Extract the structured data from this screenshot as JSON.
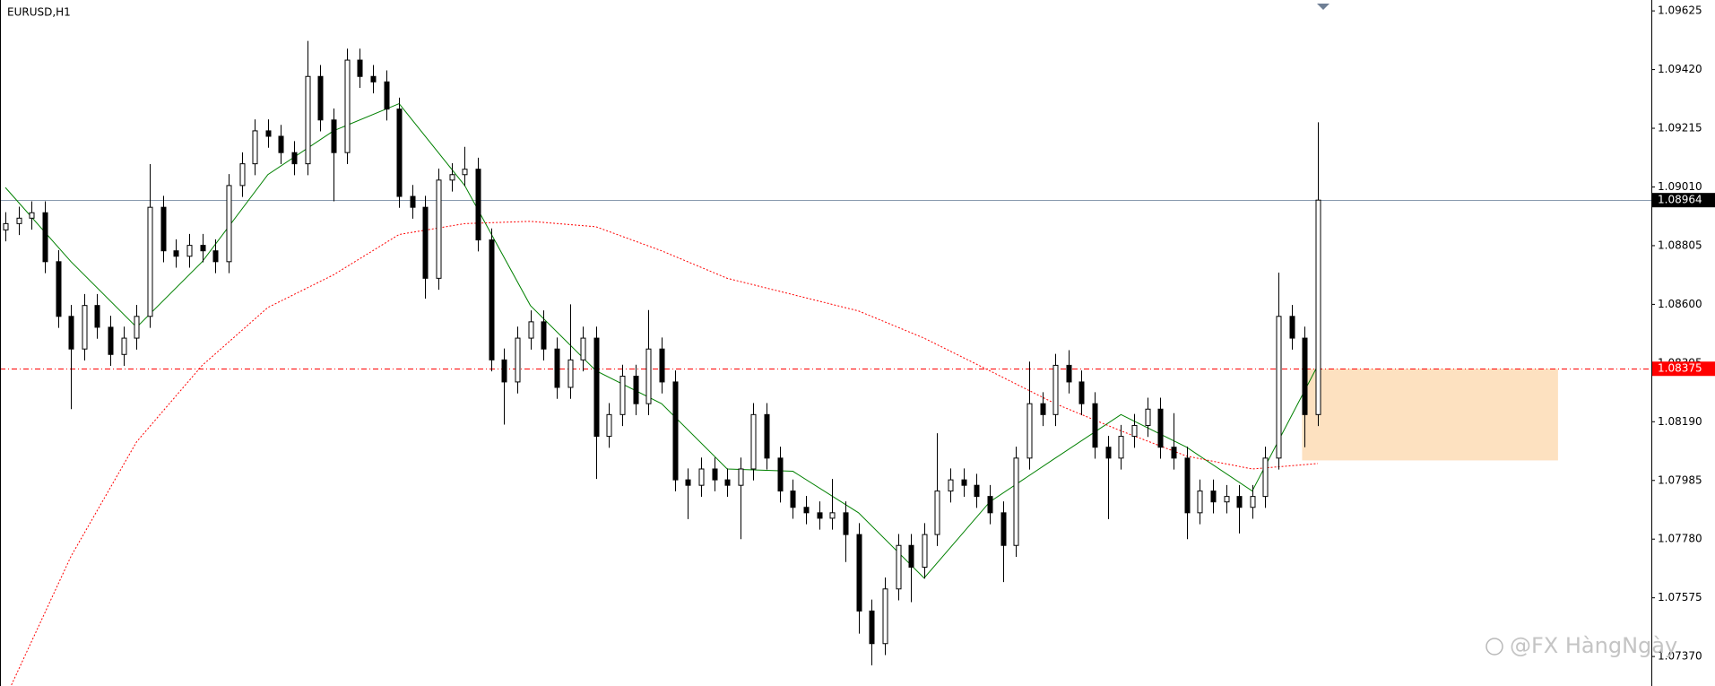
{
  "chart_data": {
    "type": "candlestick",
    "title": "EURUSD,H1",
    "watermark": "@FX HàngNgày",
    "up_color": "#ffffff",
    "down_color": "#000000",
    "ylim": [
      1.07267,
      1.09663
    ],
    "yticks": [
      1.09625,
      {
        "value": 1.0942,
        "label": "1.09420"
      },
      1.09215,
      {
        "value": 1.0901,
        "label": "1.09010"
      },
      1.08805,
      {
        "value": 1.086,
        "label": "1.08600"
      },
      1.08395,
      {
        "value": 1.0819,
        "label": "1.08190"
      },
      1.07985,
      {
        "value": 1.0778,
        "label": "1.07780"
      },
      1.07575,
      {
        "value": 1.0737,
        "label": "1.07370"
      }
    ],
    "grid": false,
    "open": [
      1.0886,
      1.08882,
      1.08901,
      1.0892,
      1.08749,
      1.08558,
      1.08444,
      1.08596,
      1.0852,
      1.08425,
      1.08482,
      1.08558,
      1.08939,
      1.08787,
      1.08768,
      1.08806,
      1.08787,
      1.08749,
      1.09015,
      1.09091,
      1.09206,
      1.09187,
      1.0913,
      1.09091,
      1.09396,
      1.09244,
      1.0913,
      1.09453,
      1.09396,
      1.09377,
      1.09282,
      1.08977,
      1.08939,
      1.08691,
      1.09034,
      1.09053,
      1.09072,
      1.08825,
      1.08406,
      1.08329,
      1.08482,
      1.08539,
      1.08444,
      1.0831,
      1.08406,
      1.08482,
      1.08139,
      1.08215,
      1.08349,
      1.08253,
      1.08444,
      1.08329,
      1.07987,
      1.07968,
      1.08025,
      1.07987,
      1.07968,
      1.08025,
      1.08215,
      1.08063,
      1.07948,
      1.07891,
      1.07872,
      1.07853,
      1.07872,
      1.07796,
      1.07529,
      1.07415,
      1.07606,
      1.07758,
      1.07682,
      1.07796,
      1.07948,
      1.07987,
      1.07968,
      1.07929,
      1.07872,
      1.07758,
      1.08063,
      1.08253,
      1.08215,
      1.08387,
      1.08329,
      1.08253,
      1.08101,
      1.08063,
      1.08139,
      1.08177,
      1.08234,
      1.08101,
      1.08063,
      1.07872,
      1.07948,
      1.0791,
      1.07929,
      1.07891,
      1.07929,
      1.08063,
      1.08558,
      1.08482,
      1.08215
    ],
    "high": [
      1.08922,
      1.08941,
      1.0896,
      1.0896,
      1.08789,
      1.08598,
      1.08636,
      1.08636,
      1.0856,
      1.08522,
      1.08598,
      1.0909,
      1.08979,
      1.08827,
      1.08846,
      1.08846,
      1.08827,
      1.09055,
      1.09131,
      1.09246,
      1.09246,
      1.09227,
      1.0917,
      1.0952,
      1.09436,
      1.09284,
      1.09493,
      1.09493,
      1.09436,
      1.09417,
      1.09322,
      1.09017,
      1.08979,
      1.09074,
      1.09093,
      1.0915,
      1.09112,
      1.08865,
      1.08446,
      1.08522,
      1.08579,
      1.08579,
      1.08484,
      1.086,
      1.08522,
      1.08522,
      1.08255,
      1.08389,
      1.08389,
      1.0858,
      1.08484,
      1.08369,
      1.08027,
      1.08065,
      1.08065,
      1.08027,
      1.08065,
      1.08255,
      1.08255,
      1.08103,
      1.07988,
      1.07931,
      1.07912,
      1.0799,
      1.07912,
      1.07836,
      1.07569,
      1.07646,
      1.07798,
      1.07798,
      1.07836,
      1.0815,
      1.08027,
      1.08027,
      1.08008,
      1.07969,
      1.07912,
      1.08103,
      1.084,
      1.08293,
      1.08427,
      1.0844,
      1.08369,
      1.08293,
      1.08141,
      1.08179,
      1.08217,
      1.08274,
      1.08274,
      1.0822,
      1.08103,
      1.07988,
      1.07988,
      1.07969,
      1.07969,
      1.07969,
      1.08103,
      1.08711,
      1.08598,
      1.08522,
      1.09236
    ],
    "low": [
      1.0882,
      1.08842,
      1.08861,
      1.08709,
      1.08518,
      1.08234,
      1.08404,
      1.0848,
      1.08385,
      1.08385,
      1.08442,
      1.08518,
      1.08747,
      1.08728,
      1.08728,
      1.08747,
      1.08709,
      1.08709,
      1.08975,
      1.09051,
      1.09147,
      1.0909,
      1.09051,
      1.09051,
      1.09204,
      1.0896,
      1.0909,
      1.09356,
      1.09337,
      1.09242,
      1.08937,
      1.08899,
      1.0862,
      1.08651,
      1.08994,
      1.09013,
      1.08785,
      1.08366,
      1.0818,
      1.08289,
      1.08442,
      1.08404,
      1.0827,
      1.0827,
      1.08366,
      1.0799,
      1.08099,
      1.08175,
      1.08213,
      1.08213,
      1.08289,
      1.07947,
      1.0785,
      1.07928,
      1.07947,
      1.07928,
      1.0778,
      1.07985,
      1.08023,
      1.07908,
      1.07851,
      1.07832,
      1.07813,
      1.07813,
      1.077,
      1.0745,
      1.07339,
      1.07375,
      1.07566,
      1.0756,
      1.07642,
      1.07756,
      1.07908,
      1.07928,
      1.07889,
      1.07832,
      1.0763,
      1.07718,
      1.08023,
      1.08175,
      1.08175,
      1.08289,
      1.08213,
      1.08061,
      1.0785,
      1.08023,
      1.08099,
      1.08137,
      1.08061,
      1.08023,
      1.0778,
      1.07832,
      1.0787,
      1.0787,
      1.078,
      1.07851,
      1.07889,
      1.08023,
      1.08442,
      1.08101,
      1.08175
    ],
    "close": [
      1.08882,
      1.08901,
      1.0892,
      1.08749,
      1.08558,
      1.08444,
      1.08596,
      1.0852,
      1.08425,
      1.08482,
      1.08558,
      1.08939,
      1.08787,
      1.08768,
      1.08806,
      1.08787,
      1.08749,
      1.09015,
      1.09091,
      1.09206,
      1.09187,
      1.0913,
      1.09091,
      1.09396,
      1.09244,
      1.0913,
      1.09453,
      1.09396,
      1.09377,
      1.09282,
      1.08977,
      1.08939,
      1.08691,
      1.09034,
      1.09053,
      1.09072,
      1.08825,
      1.08406,
      1.08329,
      1.08482,
      1.08539,
      1.08444,
      1.0831,
      1.08406,
      1.08482,
      1.08139,
      1.08215,
      1.08349,
      1.08253,
      1.08444,
      1.08329,
      1.07987,
      1.07968,
      1.08025,
      1.07987,
      1.07968,
      1.08025,
      1.08215,
      1.08063,
      1.07948,
      1.07891,
      1.07872,
      1.07853,
      1.07872,
      1.07796,
      1.07529,
      1.07415,
      1.07606,
      1.07758,
      1.07682,
      1.07796,
      1.07948,
      1.07987,
      1.07968,
      1.07929,
      1.07872,
      1.07758,
      1.08063,
      1.08253,
      1.08215,
      1.08387,
      1.08329,
      1.08253,
      1.08101,
      1.08063,
      1.08139,
      1.08177,
      1.08234,
      1.08101,
      1.08063,
      1.07872,
      1.07948,
      1.0791,
      1.07929,
      1.07891,
      1.07929,
      1.08063,
      1.08558,
      1.08482,
      1.08215,
      1.08964
    ],
    "indicators": {
      "x": [
        0,
        5,
        10,
        15,
        20,
        25,
        30,
        35,
        40,
        45,
        50,
        55,
        60,
        65,
        70,
        75,
        80,
        85,
        90,
        95,
        100
      ],
      "series": [
        {
          "color": "#008000",
          "style": "solid",
          "values": [
            1.09008,
            1.08749,
            1.0852,
            1.08749,
            1.09053,
            1.09206,
            1.09301,
            1.09015,
            1.08596,
            1.08368,
            1.08253,
            1.08025,
            1.08017,
            1.07872,
            1.07644,
            1.0791,
            1.08063,
            1.08215,
            1.08101,
            1.07948,
            1.08387
          ]
        },
        {
          "color": "#ff0000",
          "style": "dotted",
          "values": [
            1.07225,
            1.0772,
            1.0812,
            1.08387,
            1.08589,
            1.08703,
            1.08844,
            1.08882,
            1.0889,
            1.08871,
            1.08787,
            1.08691,
            1.08634,
            1.08577,
            1.08482,
            1.08368,
            1.08253,
            1.08158,
            1.0807,
            1.08025,
            1.08044
          ]
        }
      ]
    },
    "zone": {
      "x_start": 98.8,
      "x_end": 118.3,
      "top": 1.08375,
      "bottom": 1.08055,
      "color": "#fddcb5"
    },
    "levels": [
      {
        "value": 1.08964,
        "color": "#8a9bb0",
        "style": "solid",
        "label_bg": "#000000"
      },
      {
        "value": 1.08375,
        "color": "#ff0000",
        "style": "dashdot",
        "label_bg": "#ff0000"
      }
    ]
  }
}
